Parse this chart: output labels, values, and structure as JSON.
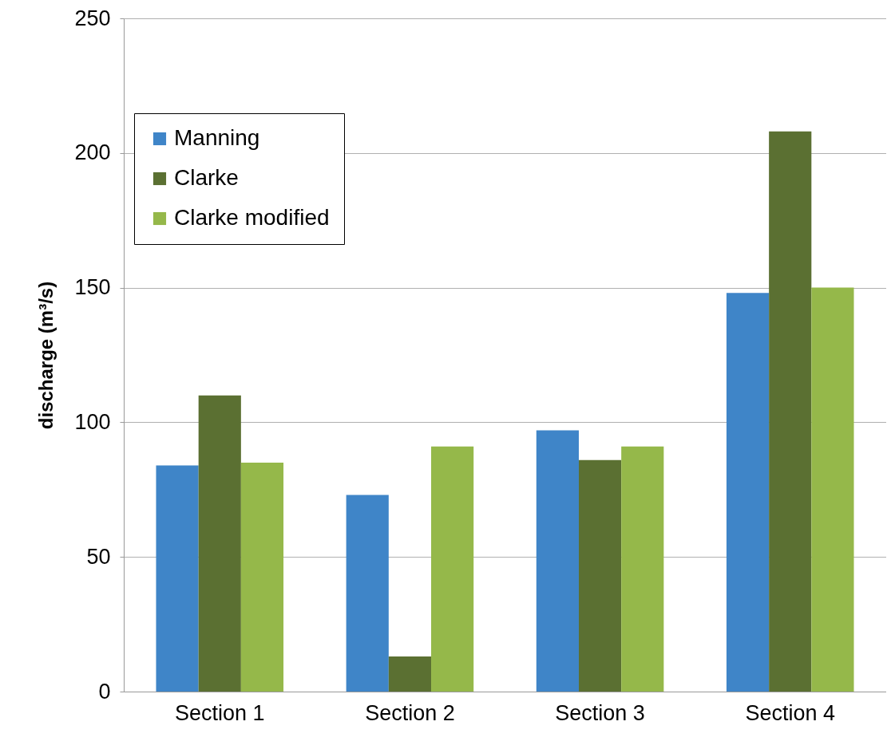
{
  "chart_data": {
    "type": "bar",
    "ylabel": "discharge (m³/s)",
    "categories": [
      "Section 1",
      "Section 2",
      "Section 3",
      "Section 4"
    ],
    "series": [
      {
        "name": "Manning",
        "color": "#3f85c8",
        "values": [
          84,
          73,
          97,
          148
        ]
      },
      {
        "name": "Clarke",
        "color": "#5b7032",
        "values": [
          110,
          13,
          86,
          208
        ]
      },
      {
        "name": "Clarke modified",
        "color": "#95b84a",
        "values": [
          85,
          91,
          91,
          150
        ]
      }
    ],
    "ylim": [
      0,
      250
    ],
    "yticks": [
      0,
      50,
      100,
      150,
      200,
      250
    ],
    "grid": "y",
    "legend": "top left"
  }
}
